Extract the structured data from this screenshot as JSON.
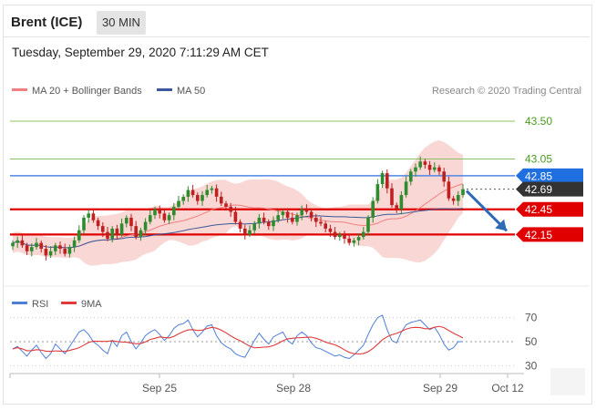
{
  "header": {
    "instrument": "Brent (ICE)",
    "timeframe": "30 MIN",
    "datetime": "Tuesday, September 29, 2020 7:11:29 AM CET"
  },
  "legend": {
    "ma_bb": "MA 20 + Bollinger Bands",
    "ma50": "MA 50",
    "copyright": "Research © 2020 Trading Central",
    "rsi": "RSI",
    "ma9": "9MA"
  },
  "colors": {
    "up": "#2e8b2e",
    "down": "#c02020",
    "bb_fill": "#f6c9c6",
    "ma20": "#f08080",
    "ma50": "#3b5998",
    "resistance": "#4f87e6",
    "support": "#e00000",
    "target_line": "#8dc060",
    "last": "#333333",
    "arrow": "#2f6ab4",
    "rsi": "#4f7ed8",
    "ma9": "#e03a3a"
  },
  "chart_data": [
    {
      "type": "candlestick",
      "ylim": [
        41.6,
        43.75
      ],
      "levels": [
        {
          "value": 43.5,
          "label": "43.50",
          "kind": "target"
        },
        {
          "value": 43.05,
          "label": "43.05",
          "kind": "target"
        },
        {
          "value": 42.85,
          "label": "42.85",
          "kind": "resistance"
        },
        {
          "value": 42.69,
          "label": "42.69",
          "kind": "last"
        },
        {
          "value": 42.45,
          "label": "42.45",
          "kind": "support"
        },
        {
          "value": 42.15,
          "label": "42.15",
          "kind": "support"
        }
      ],
      "xticks": [
        "Sep 25",
        "Sep 28",
        "Sep 29",
        "Oct 12"
      ],
      "forecast": {
        "from": 42.69,
        "to": 42.15,
        "direction": "down"
      },
      "close": [
        42.05,
        42.08,
        42.02,
        41.95,
        42.0,
        42.05,
        41.98,
        41.9,
        41.95,
        42.02,
        41.98,
        41.92,
        42.0,
        42.08,
        42.2,
        42.35,
        42.4,
        42.32,
        42.25,
        42.18,
        42.1,
        42.22,
        42.15,
        42.28,
        42.35,
        42.25,
        42.12,
        42.2,
        42.3,
        42.38,
        42.45,
        42.4,
        42.32,
        42.38,
        42.48,
        42.55,
        42.6,
        42.68,
        42.62,
        42.55,
        42.62,
        42.68,
        42.7,
        42.6,
        42.52,
        42.48,
        42.42,
        42.3,
        42.22,
        42.15,
        42.2,
        42.28,
        42.35,
        42.3,
        42.25,
        42.32,
        42.38,
        42.42,
        42.35,
        42.3,
        42.38,
        42.45,
        42.42,
        42.35,
        42.3,
        42.28,
        42.22,
        42.18,
        42.12,
        42.15,
        42.1,
        42.05,
        42.08,
        42.12,
        42.18,
        42.35,
        42.55,
        42.75,
        42.88,
        42.7,
        42.5,
        42.45,
        42.62,
        42.78,
        42.9,
        42.95,
        43.02,
        42.98,
        42.92,
        42.95,
        42.9,
        42.78,
        42.58,
        42.55,
        42.62,
        42.69
      ]
    },
    {
      "type": "line",
      "name": "RSI",
      "ylim": [
        25,
        75
      ],
      "yticks": [
        70,
        50,
        30
      ],
      "reference": 50,
      "values": [
        44,
        46,
        42,
        38,
        43,
        47,
        41,
        36,
        40,
        48,
        44,
        40,
        46,
        52,
        58,
        60,
        56,
        50,
        47,
        43,
        40,
        51,
        46,
        55,
        58,
        50,
        44,
        49,
        55,
        58,
        60,
        56,
        51,
        55,
        61,
        64,
        65,
        68,
        60,
        54,
        58,
        63,
        64,
        55,
        49,
        46,
        44,
        40,
        38,
        37,
        44,
        51,
        57,
        52,
        48,
        54,
        56,
        58,
        51,
        48,
        55,
        58,
        55,
        49,
        45,
        44,
        42,
        40,
        38,
        39,
        37,
        36,
        39,
        43,
        47,
        56,
        64,
        70,
        72,
        60,
        51,
        49,
        58,
        64,
        66,
        67,
        68,
        64,
        60,
        62,
        56,
        48,
        43,
        45,
        50,
        50
      ]
    }
  ]
}
